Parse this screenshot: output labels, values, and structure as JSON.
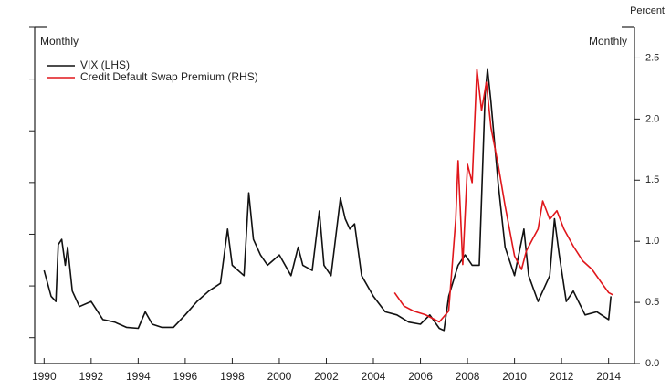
{
  "chart_data": {
    "type": "line",
    "left_note": "Monthly",
    "right_note": "Monthly",
    "y2_label": "Percent",
    "xlim": [
      1989.6,
      2015.1
    ],
    "xticks": [
      1990,
      1992,
      1994,
      1996,
      1998,
      2000,
      2002,
      2004,
      2006,
      2008,
      2010,
      2012,
      2014
    ],
    "ylim": [
      5,
      70
    ],
    "yticks": [
      10,
      20,
      30,
      40,
      50,
      60,
      70
    ],
    "y2lim": [
      0,
      2.75
    ],
    "y2ticks": [
      {
        "value": 0,
        "label": "0.0"
      },
      0.5,
      {
        "value": 1,
        "label": "1.0"
      },
      1.5,
      {
        "value": 2,
        "label": "2.0"
      },
      2.5
    ],
    "series": [
      {
        "name": "VIX (LHS)",
        "color": "#111111",
        "x": [
          1990.0,
          1990.3,
          1990.5,
          1990.6,
          1990.75,
          1990.9,
          1991.0,
          1991.2,
          1991.5,
          1992.0,
          1992.5,
          1993.0,
          1993.5,
          1994.0,
          1994.3,
          1994.6,
          1995.0,
          1995.5,
          1996.0,
          1996.5,
          1997.0,
          1997.5,
          1997.8,
          1998.0,
          1998.5,
          1998.7,
          1998.9,
          1999.2,
          1999.5,
          2000.0,
          2000.5,
          2000.8,
          2001.0,
          2001.4,
          2001.7,
          2001.9,
          2002.2,
          2002.6,
          2002.8,
          2003.0,
          2003.2,
          2003.5,
          2004.0,
          2004.5,
          2005.0,
          2005.5,
          2006.0,
          2006.4,
          2006.8,
          2007.0,
          2007.2,
          2007.6,
          2007.9,
          2008.2,
          2008.5,
          2008.75,
          2008.85,
          2009.0,
          2009.3,
          2009.6,
          2010.0,
          2010.4,
          2010.6,
          2011.0,
          2011.5,
          2011.7,
          2011.9,
          2012.2,
          2012.5,
          2013.0,
          2013.5,
          2014.0,
          2014.1
        ],
        "values": [
          23,
          18,
          17,
          28,
          29,
          24,
          27.5,
          19,
          16,
          17,
          13.5,
          13,
          12,
          11.8,
          15,
          12.6,
          12,
          12,
          14.4,
          17,
          19,
          20.5,
          31,
          24,
          22,
          38,
          29,
          26,
          24,
          26,
          22,
          27.5,
          24,
          23,
          34.5,
          24,
          22,
          37,
          33,
          31,
          32,
          22,
          18,
          15,
          14.4,
          13,
          12.6,
          14.4,
          11.8,
          11.4,
          18,
          24,
          26,
          24,
          24,
          57,
          62,
          55.6,
          40,
          27.5,
          22,
          31,
          22,
          17,
          22,
          33,
          26,
          17,
          19,
          14.4,
          15,
          13.5,
          18
        ]
      },
      {
        "name": "Credit Default Swap Premium (RHS)",
        "color": "#e0161b",
        "axis": "y2",
        "x": [
          2004.9,
          2005.3,
          2005.7,
          2006.2,
          2006.8,
          2007.2,
          2007.5,
          2007.6,
          2007.8,
          2008.0,
          2008.2,
          2008.4,
          2008.6,
          2008.8,
          2009.0,
          2009.3,
          2009.6,
          2010.0,
          2010.3,
          2010.5,
          2010.8,
          2011.0,
          2011.2,
          2011.5,
          2011.8,
          2012.1,
          2012.5,
          2012.9,
          2013.3,
          2013.7,
          2014.0,
          2014.2
        ],
        "values": [
          0.58,
          0.47,
          0.43,
          0.4,
          0.34,
          0.43,
          1.18,
          1.66,
          0.81,
          1.63,
          1.48,
          2.41,
          2.07,
          2.3,
          1.93,
          1.63,
          1.29,
          0.88,
          0.77,
          0.92,
          1.03,
          1.1,
          1.33,
          1.18,
          1.25,
          1.1,
          0.96,
          0.84,
          0.77,
          0.66,
          0.58,
          0.56
        ]
      }
    ]
  }
}
